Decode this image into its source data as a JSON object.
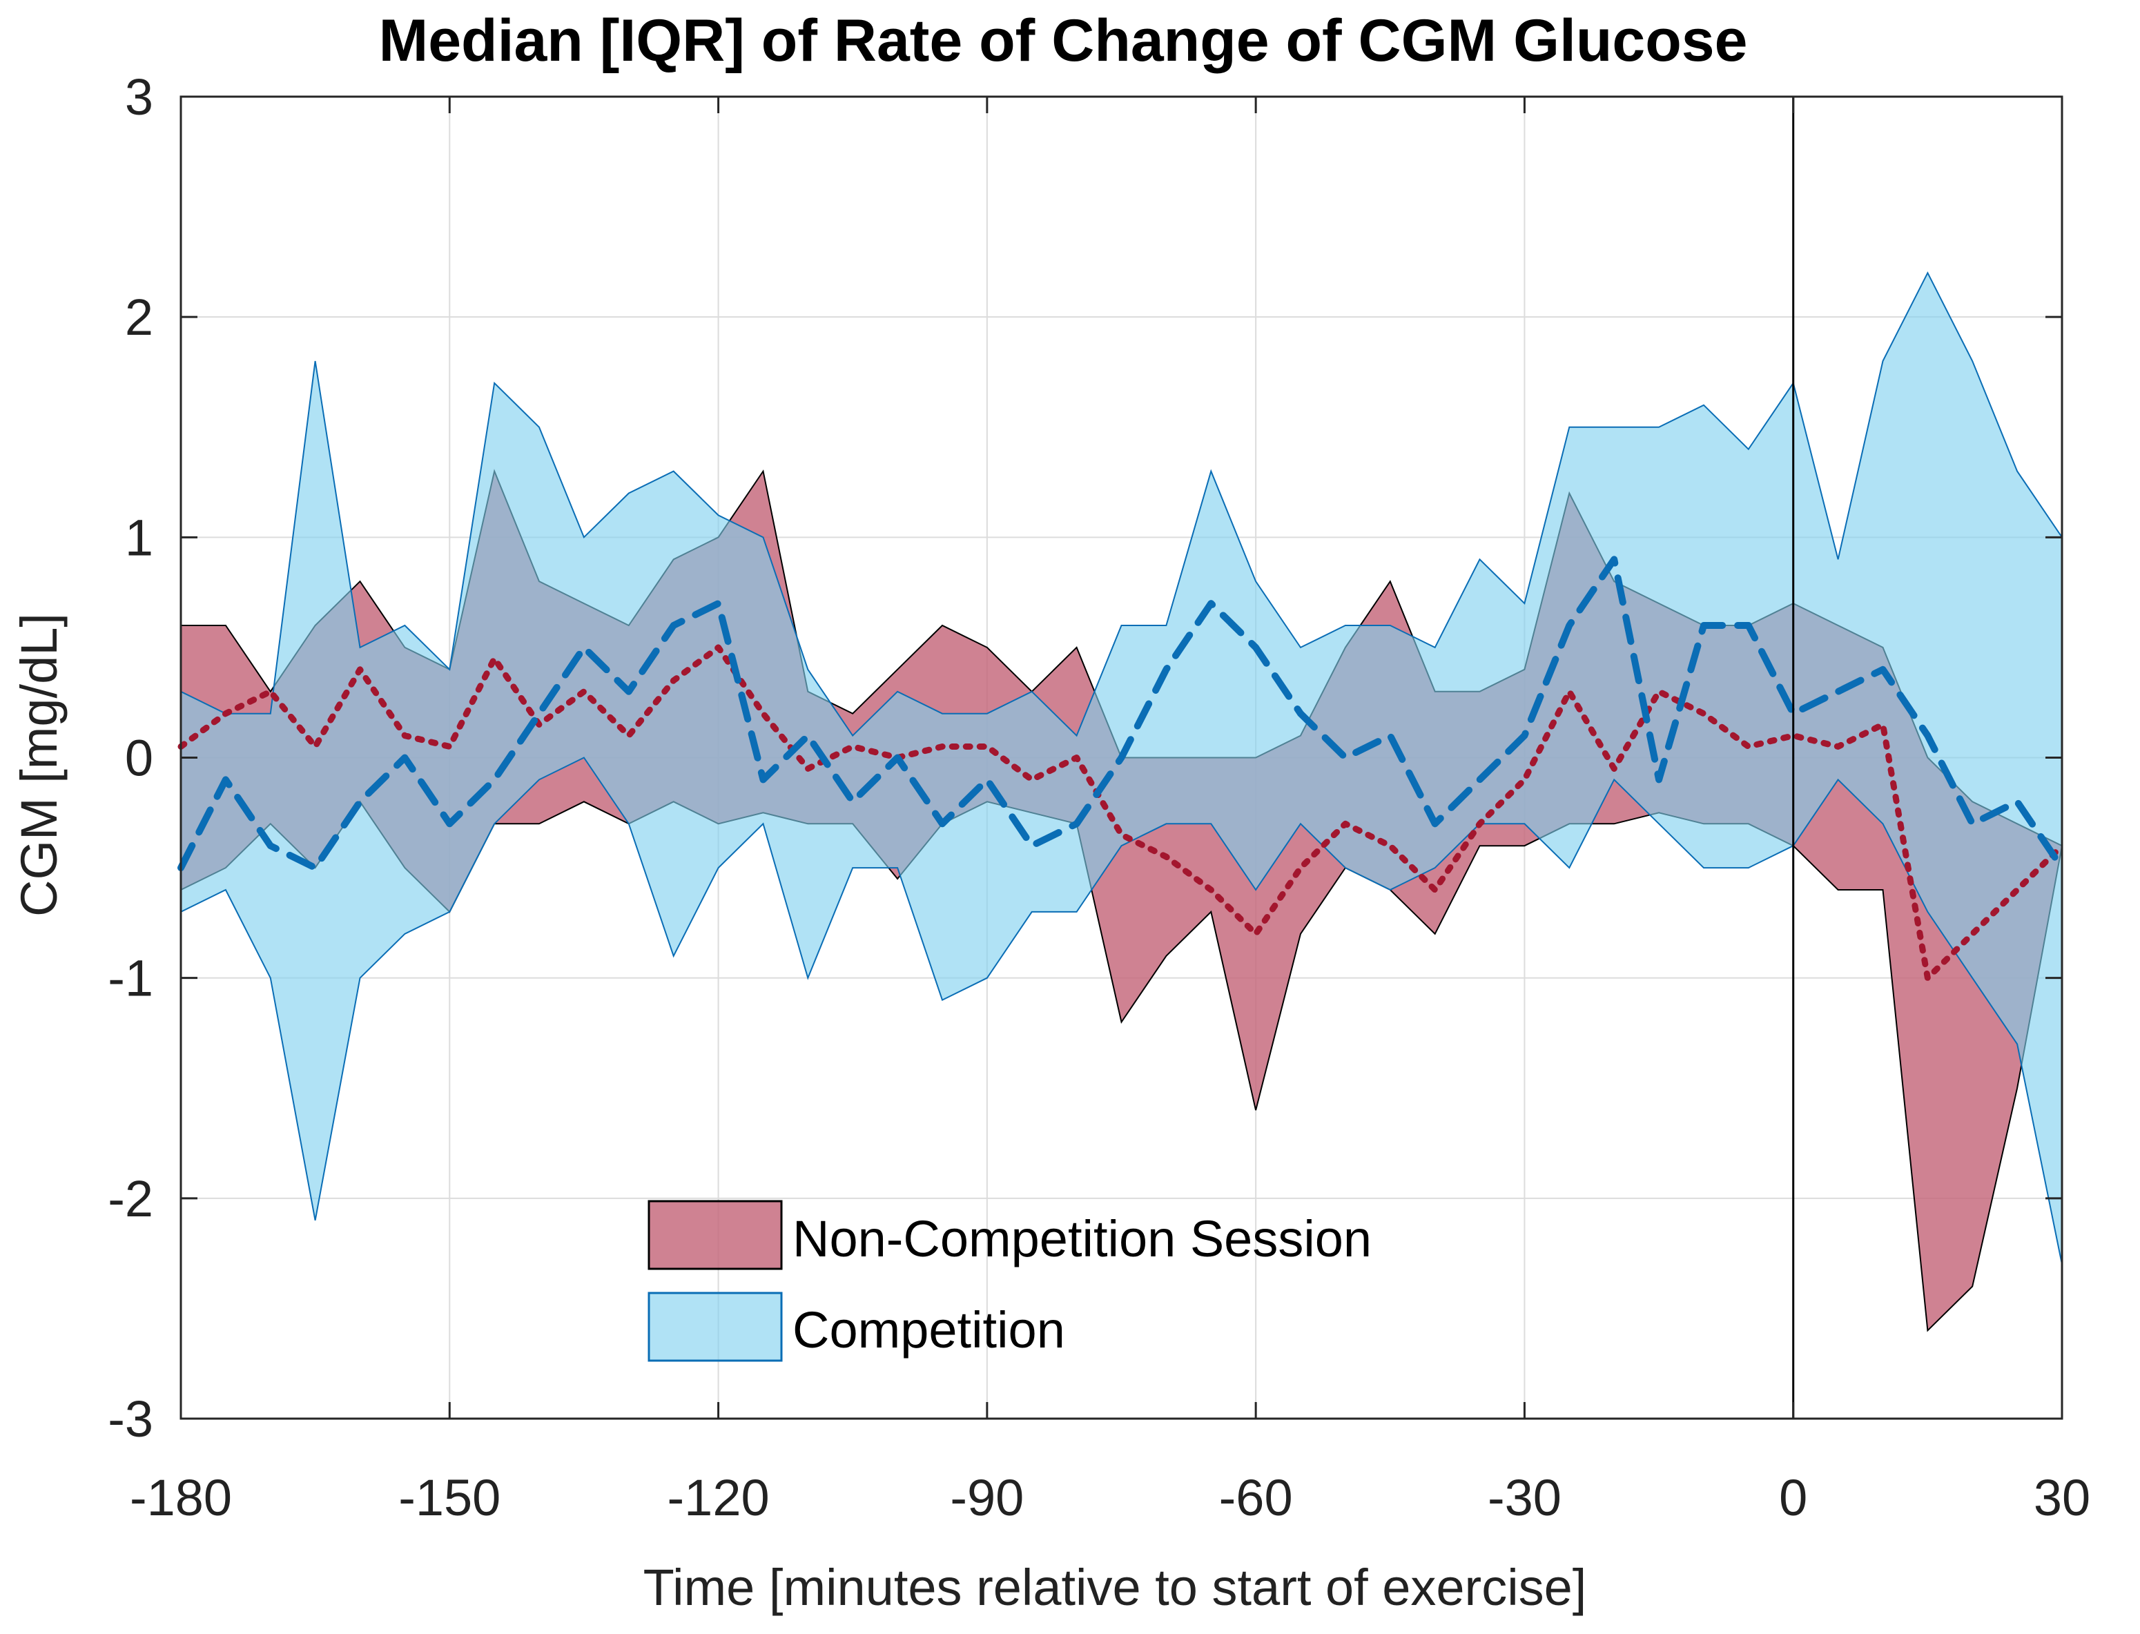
{
  "chart_data": {
    "type": "area",
    "title": "Median [IQR] of Rate of Change of CGM Glucose",
    "xlabel": "Time [minutes relative to start of exercise]",
    "ylabel": "CGM [mg/dL]",
    "xlim": [
      -180,
      30
    ],
    "ylim": [
      -3,
      3
    ],
    "xticks": [
      -180,
      -150,
      -120,
      -90,
      -60,
      -30,
      0,
      30
    ],
    "yticks": [
      -3,
      -2,
      -1,
      0,
      1,
      2,
      3
    ],
    "grid": true,
    "vline_x": 0,
    "legend_position": "bottom-center",
    "colors": {
      "noncomp_fill": "#c5677a",
      "noncomp_line": "#a3162e",
      "noncomp_edge": "#000000",
      "comp_fill": "#7fd0ef",
      "comp_line": "#0a6db5",
      "comp_edge": "#0a6db5"
    },
    "series": [
      {
        "name": "Non-Competition Session",
        "style": "dotted",
        "x": [
          -180,
          -175,
          -170,
          -165,
          -160,
          -155,
          -150,
          -145,
          -140,
          -135,
          -130,
          -125,
          -120,
          -115,
          -110,
          -105,
          -100,
          -95,
          -90,
          -85,
          -80,
          -75,
          -70,
          -65,
          -60,
          -55,
          -50,
          -45,
          -40,
          -35,
          -30,
          -25,
          -20,
          -15,
          -10,
          -5,
          0,
          5,
          10,
          15,
          20,
          25,
          30
        ],
        "median": [
          0.05,
          0.2,
          0.3,
          0.05,
          0.4,
          0.1,
          0.05,
          0.45,
          0.15,
          0.3,
          0.1,
          0.35,
          0.5,
          0.2,
          -0.05,
          0.05,
          0.0,
          0.05,
          0.05,
          -0.1,
          0.0,
          -0.35,
          -0.45,
          -0.6,
          -0.8,
          -0.5,
          -0.3,
          -0.4,
          -0.6,
          -0.3,
          -0.1,
          0.3,
          -0.05,
          0.3,
          0.2,
          0.05,
          0.1,
          0.05,
          0.15,
          -1.0,
          -0.8,
          -0.6,
          -0.4
        ],
        "q1": [
          -0.6,
          -0.5,
          -0.3,
          -0.5,
          -0.2,
          -0.5,
          -0.7,
          -0.3,
          -0.3,
          -0.2,
          -0.3,
          -0.2,
          -0.3,
          -0.25,
          -0.3,
          -0.3,
          -0.55,
          -0.3,
          -0.2,
          -0.25,
          -0.3,
          -1.2,
          -0.9,
          -0.7,
          -1.6,
          -0.8,
          -0.5,
          -0.6,
          -0.8,
          -0.4,
          -0.4,
          -0.3,
          -0.3,
          -0.25,
          -0.3,
          -0.3,
          -0.4,
          -0.6,
          -0.6,
          -2.6,
          -2.4,
          -1.5,
          -0.4
        ],
        "q3": [
          0.6,
          0.6,
          0.3,
          0.6,
          0.8,
          0.5,
          0.4,
          1.3,
          0.8,
          0.7,
          0.6,
          0.9,
          1.0,
          1.3,
          0.3,
          0.2,
          0.4,
          0.6,
          0.5,
          0.3,
          0.5,
          0.0,
          0.0,
          0.0,
          0.0,
          0.1,
          0.5,
          0.8,
          0.3,
          0.3,
          0.4,
          1.2,
          0.8,
          0.7,
          0.6,
          0.6,
          0.7,
          0.6,
          0.5,
          0.0,
          -0.2,
          -0.3,
          -0.4
        ]
      },
      {
        "name": "Competition",
        "style": "dashed",
        "x": [
          -180,
          -175,
          -170,
          -165,
          -160,
          -155,
          -150,
          -145,
          -140,
          -135,
          -130,
          -125,
          -120,
          -115,
          -110,
          -105,
          -100,
          -95,
          -90,
          -85,
          -80,
          -75,
          -70,
          -65,
          -60,
          -55,
          -50,
          -45,
          -40,
          -35,
          -30,
          -25,
          -20,
          -15,
          -10,
          -5,
          0,
          5,
          10,
          15,
          20,
          25,
          30
        ],
        "median": [
          -0.5,
          -0.1,
          -0.4,
          -0.5,
          -0.2,
          0.0,
          -0.3,
          -0.1,
          0.2,
          0.5,
          0.3,
          0.6,
          0.7,
          -0.1,
          0.1,
          -0.2,
          0.0,
          -0.3,
          -0.1,
          -0.4,
          -0.3,
          0.0,
          0.4,
          0.7,
          0.5,
          0.2,
          0.0,
          0.1,
          -0.3,
          -0.1,
          0.1,
          0.6,
          0.9,
          -0.1,
          0.6,
          0.6,
          0.2,
          0.3,
          0.4,
          0.1,
          -0.3,
          -0.2,
          -0.5
        ],
        "q1": [
          -0.7,
          -0.6,
          -1.0,
          -2.1,
          -1.0,
          -0.8,
          -0.7,
          -0.3,
          -0.1,
          0.0,
          -0.3,
          -0.9,
          -0.5,
          -0.3,
          -1.0,
          -0.5,
          -0.5,
          -1.1,
          -1.0,
          -0.7,
          -0.7,
          -0.4,
          -0.3,
          -0.3,
          -0.6,
          -0.3,
          -0.5,
          -0.6,
          -0.5,
          -0.3,
          -0.3,
          -0.5,
          -0.1,
          -0.3,
          -0.5,
          -0.5,
          -0.4,
          -0.1,
          -0.3,
          -0.7,
          -1.0,
          -1.3,
          -2.3
        ],
        "q3": [
          0.3,
          0.2,
          0.2,
          1.8,
          0.5,
          0.6,
          0.4,
          1.7,
          1.5,
          1.0,
          1.2,
          1.3,
          1.1,
          1.0,
          0.4,
          0.1,
          0.3,
          0.2,
          0.2,
          0.3,
          0.1,
          0.6,
          0.6,
          1.3,
          0.8,
          0.5,
          0.6,
          0.6,
          0.5,
          0.9,
          0.7,
          1.5,
          1.5,
          1.5,
          1.6,
          1.4,
          1.7,
          0.9,
          1.8,
          2.2,
          1.8,
          1.3,
          1.0
        ]
      }
    ]
  }
}
